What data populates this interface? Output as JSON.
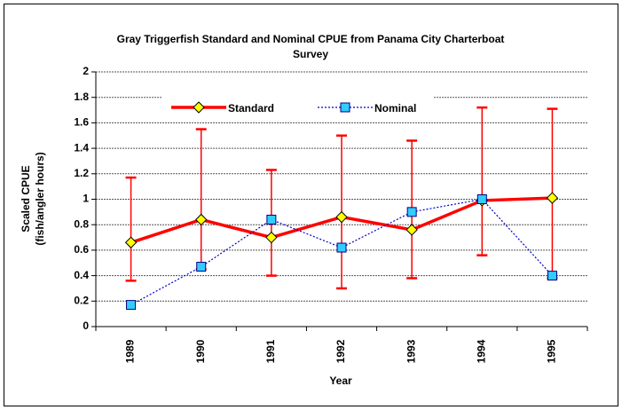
{
  "chart_data": {
    "type": "line",
    "title": "Gray Triggerfish Standard and Nominal CPUE from Panama City Charterboat Survey",
    "x_label": "Year",
    "y_label": [
      "Scaled CPUE",
      "(fish/angler hours)"
    ],
    "categories": [
      "1989",
      "1990",
      "1991",
      "1992",
      "1993",
      "1994",
      "1995"
    ],
    "series": [
      {
        "name": "Standard",
        "color": "#ff0000",
        "marker": "diamond",
        "line": "solid",
        "values": [
          0.66,
          0.84,
          0.7,
          0.86,
          0.76,
          0.99,
          1.01
        ],
        "lower": [
          0.36,
          0.45,
          0.4,
          0.3,
          0.38,
          0.56,
          0.38
        ],
        "upper": [
          1.17,
          1.55,
          1.23,
          1.5,
          1.46,
          1.72,
          1.71
        ]
      },
      {
        "name": "Nominal",
        "color": "#0000cc",
        "marker": "square",
        "line": "dotted",
        "values": [
          0.17,
          0.47,
          0.84,
          0.62,
          0.9,
          1.0,
          0.4
        ]
      }
    ],
    "ylim": [
      0,
      2
    ],
    "yticks": [
      0,
      0.2,
      0.4,
      0.6,
      0.8,
      1,
      1.2,
      1.4,
      1.6,
      1.8,
      2
    ],
    "grid": true,
    "legend": "top"
  }
}
